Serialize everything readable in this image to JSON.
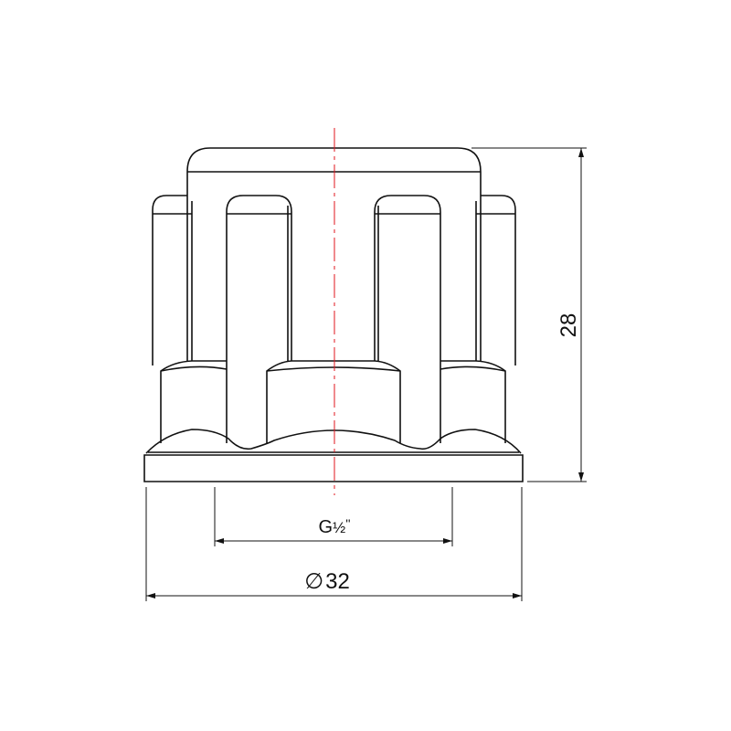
{
  "dimensions": {
    "height": "28",
    "thread": "G",
    "thread_fraction": "½",
    "thread_suffix": "''",
    "diameter_symbol": "∅",
    "diameter": "32"
  },
  "colors": {
    "outline": "#111111",
    "centerline": "#e0141e"
  }
}
